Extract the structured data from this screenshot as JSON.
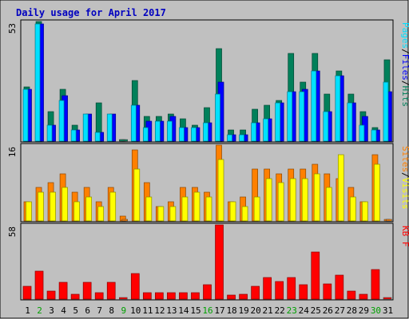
{
  "chart_data": {
    "type": "bar",
    "title": "Daily usage for April 2017",
    "categories": [
      "1",
      "2",
      "3",
      "4",
      "5",
      "6",
      "7",
      "8",
      "9",
      "10",
      "11",
      "12",
      "13",
      "14",
      "15",
      "16",
      "17",
      "18",
      "19",
      "20",
      "21",
      "22",
      "23",
      "24",
      "25",
      "26",
      "27",
      "28",
      "29",
      "30",
      "31"
    ],
    "weekend_days": [
      "2",
      "9",
      "16",
      "23",
      "30"
    ],
    "colors": {
      "hits": "#00805a",
      "files": "#0000ff",
      "pages": "#00e0ff",
      "visits": "#ffff00",
      "sites": "#ff8000",
      "kb": "#ff0000",
      "plot_bg": "#c0c0c0",
      "title": "#0000c0",
      "weekday_label": "#000000",
      "weekend_label": "#00a000"
    },
    "panels": [
      {
        "id": "hits-files-pages",
        "max_label": "53",
        "ymax": 53,
        "legend": [
          {
            "text": "Pages",
            "color": "#00e0ff"
          },
          {
            "text": "/",
            "color": "#000000"
          },
          {
            "text": "Files",
            "color": "#0000ff"
          },
          {
            "text": "/",
            "color": "#000000"
          },
          {
            "text": "Hits",
            "color": "#00805a"
          }
        ],
        "series": [
          {
            "name": "Hits",
            "color": "#00805a",
            "values": [
              24,
              53,
              13,
              23,
              7,
              10,
              17,
              1,
              0,
              27,
              11,
              11,
              12,
              10,
              7,
              15,
              41,
              5,
              5,
              14,
              16,
              18,
              39,
              26,
              39,
              21,
              31,
              21,
              13,
              6,
              36
            ]
          },
          {
            "name": "Files",
            "color": "#0000ff",
            "values": [
              23,
              52,
              7,
              20,
              5,
              12,
              4,
              12,
              0,
              16,
              9,
              9,
              11,
              6,
              6,
              8,
              26,
              3,
              3,
              8,
              10,
              17,
              22,
              23,
              31,
              13,
              29,
              17,
              11,
              5,
              22
            ]
          },
          {
            "name": "Pages",
            "color": "#00e0ff",
            "values": [
              23,
              52,
              7,
              18,
              5,
              12,
              4,
              12,
              0,
              16,
              6,
              9,
              9,
              6,
              6,
              8,
              21,
              3,
              3,
              8,
              10,
              17,
              22,
              22,
              31,
              13,
              29,
              17,
              7,
              5,
              26
            ]
          }
        ]
      },
      {
        "id": "visits-sites",
        "max_label": "16",
        "ymax": 16,
        "legend": [
          {
            "text": "Sites",
            "color": "#ff8000"
          },
          {
            "text": "/",
            "color": "#000000"
          },
          {
            "text": "Visits",
            "color": "#ffff00"
          }
        ],
        "series": [
          {
            "name": "Sites",
            "color": "#ff8000",
            "values": [
              4,
              7,
              8,
              10,
              6,
              7,
              4,
              7,
              1,
              15,
              8,
              3,
              4,
              7,
              7,
              6,
              16,
              4,
              5,
              11,
              11,
              10,
              11,
              11,
              12,
              10,
              9,
              7,
              4,
              14,
              0
            ]
          },
          {
            "name": "Visits",
            "color": "#ffff00",
            "values": [
              4,
              6,
              6,
              7,
              4,
              5,
              3,
              6,
              0,
              11,
              5,
              3,
              3,
              5,
              6,
              5,
              13,
              4,
              3,
              5,
              9,
              8,
              9,
              9,
              10,
              7,
              14,
              5,
              4,
              12,
              0
            ]
          }
        ]
      },
      {
        "id": "kb",
        "max_label": "58",
        "ymax": 58,
        "legend": [
          {
            "text": "KB F",
            "color": "#ff0000"
          }
        ],
        "series": [
          {
            "name": "KB F",
            "color": "#ff0000",
            "values": [
              10,
              22,
              6,
              13,
              4,
              13,
              5,
              13,
              0,
              20,
              5,
              5,
              5,
              5,
              5,
              11,
              58,
              3,
              4,
              10,
              17,
              14,
              17,
              11,
              37,
              12,
              19,
              6,
              4,
              23,
              0
            ]
          }
        ]
      }
    ]
  }
}
